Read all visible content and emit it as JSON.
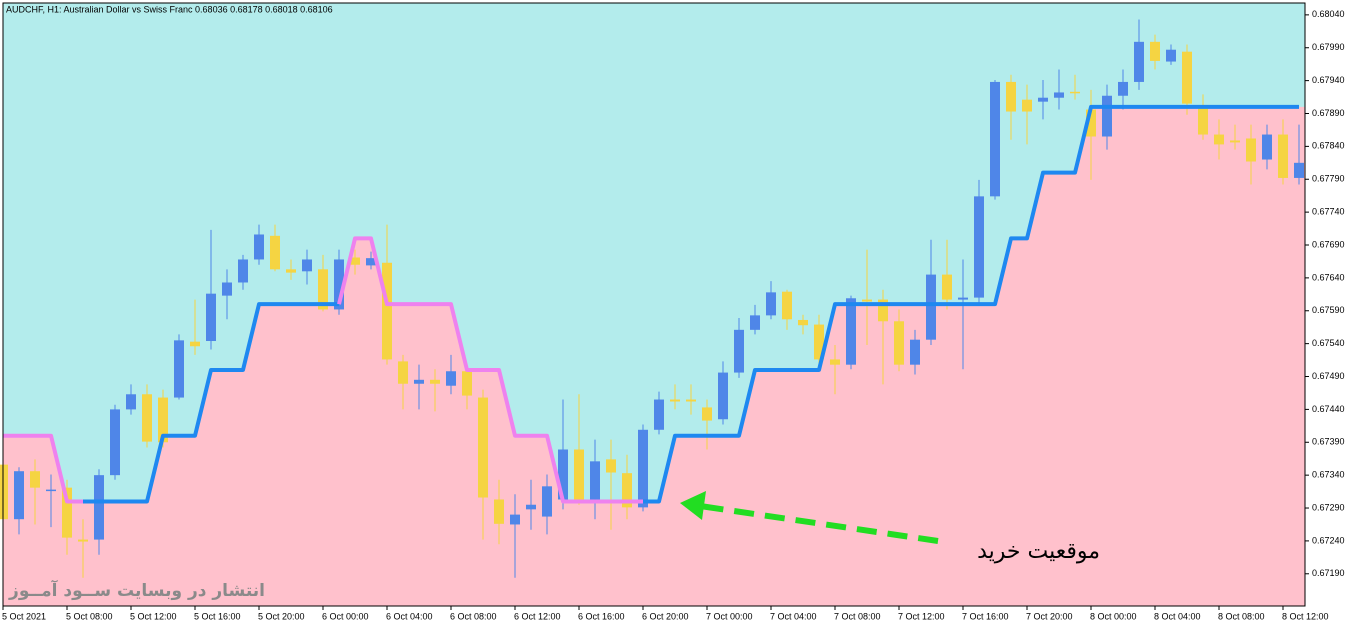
{
  "chart_data": {
    "type": "candlestick",
    "title": "AUDCHF, H1:  Australian Dollar vs Swiss Franc  0.68036 0.68178 0.68018 0.68106",
    "annotations": [
      "موقعیت خرید",
      "انتشار در وبسایت  ســود آمــوز"
    ],
    "categories": [
      "5 Oct 2021",
      null,
      null,
      null,
      "5 Oct 08:00",
      null,
      null,
      null,
      "5 Oct 12:00",
      null,
      null,
      null,
      "5 Oct 16:00",
      null,
      null,
      null,
      "5 Oct 20:00",
      null,
      null,
      null,
      "6 Oct 00:00",
      null,
      null,
      null,
      "6 Oct 04:00",
      null,
      null,
      null,
      "6 Oct 08:00",
      null,
      null,
      null,
      "6 Oct 12:00",
      null,
      null,
      null,
      "6 Oct 16:00",
      null,
      null,
      null,
      "6 Oct 20:00",
      null,
      null,
      null,
      "7 Oct 00:00",
      null,
      null,
      null,
      "7 Oct 04:00",
      null,
      null,
      null,
      "7 Oct 08:00",
      null,
      null,
      null,
      "7 Oct 12:00",
      null,
      null,
      null,
      "7 Oct 16:00",
      null,
      null,
      null,
      "7 Oct 20:00",
      null,
      null,
      null,
      "8 Oct 00:00",
      null,
      null,
      null,
      "8 Oct 04:00",
      null,
      null,
      null,
      "8 Oct 08:00",
      null,
      null,
      null,
      "8 Oct 12:00",
      null
    ],
    "open": [
      0.67356,
      0.67273,
      0.67346,
      0.67318,
      0.67321,
      0.67242,
      0.67242,
      0.6734,
      0.6744,
      0.67463,
      0.67458,
      0.67458,
      0.67543,
      0.67544,
      0.67613,
      0.67633,
      0.67668,
      0.67704,
      0.67653,
      0.6765,
      0.67653,
      0.67592,
      0.67671,
      0.67659,
      0.67663,
      0.67513,
      0.67479,
      0.67485,
      0.67476,
      0.67498,
      0.67458,
      0.67303,
      0.67265,
      0.67288,
      0.67277,
      0.67303,
      0.67379,
      0.67303,
      0.67364,
      0.67343,
      0.67291,
      0.67409,
      0.67455,
      0.67455,
      0.67443,
      0.67425,
      0.67496,
      0.67561,
      0.67583,
      0.67619,
      0.67576,
      0.67569,
      0.67516,
      0.67508,
      0.67607,
      0.67607,
      0.67574,
      0.67508,
      0.67546,
      0.67645,
      0.67607,
      0.6761,
      0.67764,
      0.67938,
      0.67911,
      0.67908,
      0.67914,
      0.67923,
      0.67896,
      0.67855,
      0.67917,
      0.67938,
      0.67999,
      0.67969,
      0.67984,
      0.67899,
      0.67858,
      0.67849,
      0.67852,
      0.6782,
      0.67858,
      0.67792
    ],
    "high": [
      0.67364,
      0.67352,
      0.67364,
      0.67341,
      0.67333,
      0.67273,
      0.67349,
      0.67447,
      0.67478,
      0.67478,
      0.6747,
      0.67554,
      0.67607,
      0.67713,
      0.67653,
      0.67675,
      0.67721,
      0.67721,
      0.67668,
      0.67683,
      0.67675,
      0.67683,
      0.67683,
      0.6768,
      0.67721,
      0.67523,
      0.67508,
      0.67501,
      0.67523,
      0.67508,
      0.6747,
      0.67333,
      0.67311,
      0.67333,
      0.67341,
      0.67455,
      0.67463,
      0.67394,
      0.67394,
      0.67371,
      0.67417,
      0.67467,
      0.67478,
      0.67478,
      0.67455,
      0.67513,
      0.67579,
      0.67599,
      0.67635,
      0.67622,
      0.67584,
      0.67584,
      0.67538,
      0.67613,
      0.67683,
      0.67622,
      0.67592,
      0.67561,
      0.67698,
      0.67698,
      0.67668,
      0.67789,
      0.67941,
      0.67949,
      0.67934,
      0.67941,
      0.67957,
      0.67949,
      0.67926,
      0.67934,
      0.67957,
      0.68033,
      0.6801,
      0.67995,
      0.67995,
      0.67919,
      0.67881,
      0.67873,
      0.67873,
      0.67873,
      0.67881,
      0.67873
    ],
    "low": [
      0.67265,
      0.6725,
      0.67265,
      0.67261,
      0.67219,
      0.67184,
      0.67219,
      0.67333,
      0.67432,
      0.67382,
      0.67382,
      0.67455,
      0.67523,
      0.67531,
      0.67577,
      0.67622,
      0.6766,
      0.6765,
      0.67637,
      0.6763,
      0.67589,
      0.67584,
      0.67645,
      0.67653,
      0.67508,
      0.6744,
      0.6744,
      0.67437,
      0.67463,
      0.6744,
      0.67242,
      0.67235,
      0.67184,
      0.67257,
      0.6725,
      0.67288,
      0.67295,
      0.67273,
      0.67257,
      0.67273,
      0.67285,
      0.67402,
      0.6744,
      0.67432,
      0.67379,
      0.67417,
      0.67488,
      0.67554,
      0.67577,
      0.67561,
      0.67554,
      0.67508,
      0.67463,
      0.67501,
      0.67538,
      0.67478,
      0.67498,
      0.67493,
      0.67538,
      0.67592,
      0.67501,
      0.67599,
      0.67759,
      0.6785,
      0.67843,
      0.67881,
      0.67896,
      0.67911,
      0.67789,
      0.67835,
      0.67896,
      0.67926,
      0.67957,
      0.67964,
      0.67888,
      0.6785,
      0.6782,
      0.67835,
      0.67782,
      0.67805,
      0.67782,
      0.67782
    ],
    "close": [
      0.67273,
      0.67346,
      0.67321,
      0.67318,
      0.67245,
      0.67239,
      0.6734,
      0.6744,
      0.67463,
      0.67391,
      0.6739,
      0.67545,
      0.67536,
      0.67616,
      0.67633,
      0.67668,
      0.67706,
      0.67653,
      0.67648,
      0.67668,
      0.67592,
      0.67668,
      0.6766,
      0.6767,
      0.67516,
      0.67479,
      0.67485,
      0.67479,
      0.67498,
      0.67461,
      0.67306,
      0.67266,
      0.6728,
      0.67295,
      0.67323,
      0.67379,
      0.67303,
      0.67361,
      0.67344,
      0.67291,
      0.67409,
      0.67455,
      0.67452,
      0.67452,
      0.67423,
      0.67496,
      0.67561,
      0.67583,
      0.67618,
      0.67577,
      0.67568,
      0.67516,
      0.67508,
      0.67609,
      0.67604,
      0.67574,
      0.67508,
      0.67546,
      0.67645,
      0.67607,
      0.6761,
      0.67764,
      0.67938,
      0.67893,
      0.67893,
      0.67914,
      0.67922,
      0.67922,
      0.67855,
      0.67917,
      0.67938,
      0.67999,
      0.6797,
      0.67987,
      0.67905,
      0.67858,
      0.67843,
      0.67846,
      0.67817,
      0.67858,
      0.67792,
      0.67815
    ],
    "up_color": "#4f86e8",
    "down_color": "#f5d442",
    "overlays": [
      {
        "color": "#1e88f0",
        "values": [
          null,
          null,
          null,
          null,
          null,
          0.673,
          0.673,
          0.673,
          0.673,
          0.673,
          0.674,
          0.674,
          0.674,
          0.675,
          0.675,
          0.675,
          0.676,
          0.676,
          0.676,
          0.676,
          0.676,
          0.676,
          null,
          null,
          null,
          null,
          null,
          null,
          null,
          null,
          null,
          null,
          null,
          null,
          null,
          null,
          null,
          null,
          null,
          null,
          0.673,
          0.673,
          0.674,
          0.674,
          0.674,
          0.674,
          0.674,
          0.675,
          0.675,
          0.675,
          0.675,
          0.675,
          0.676,
          0.676,
          0.676,
          0.676,
          0.676,
          0.676,
          0.676,
          0.676,
          0.676,
          0.676,
          0.676,
          0.677,
          0.677,
          0.678,
          0.678,
          0.678,
          0.679,
          0.679,
          0.679,
          0.679,
          0.679,
          0.679,
          0.679,
          0.679,
          0.679,
          0.679,
          0.679,
          0.679,
          0.679,
          0.679
        ]
      },
      {
        "color": "#ee82ee",
        "values": [
          0.674,
          0.674,
          0.674,
          0.674,
          0.673,
          0.673,
          null,
          null,
          null,
          null,
          null,
          null,
          null,
          null,
          null,
          null,
          null,
          null,
          null,
          null,
          null,
          0.676,
          0.677,
          0.677,
          0.676,
          0.676,
          0.676,
          0.676,
          0.676,
          0.675,
          0.675,
          0.675,
          0.674,
          0.674,
          0.674,
          0.673,
          0.673,
          0.673,
          0.673,
          0.673,
          0.673,
          null,
          null,
          null,
          null,
          null,
          null,
          null,
          null,
          null,
          null,
          null,
          null,
          null,
          null,
          null,
          null,
          null,
          null,
          null,
          null,
          null,
          null,
          null,
          null,
          null,
          null,
          null,
          null,
          null,
          null,
          null,
          null,
          null,
          null,
          null,
          null,
          null,
          null,
          null,
          null,
          null
        ]
      }
    ],
    "above_color": "#b3ecec",
    "below_color": "#ffc1cc",
    "ylim": [
      0.67141,
      0.68055
    ],
    "yticks": [
      {
        "value": 0.6804,
        "label": "0.68040"
      },
      {
        "value": 0.6799,
        "label": "0.67990"
      },
      {
        "value": 0.6794,
        "label": "0.67940"
      },
      {
        "value": 0.6789,
        "label": "0.67890"
      },
      {
        "value": 0.6784,
        "label": "0.67840"
      },
      {
        "value": 0.6779,
        "label": "0.67790"
      },
      {
        "value": 0.6774,
        "label": "0.67740"
      },
      {
        "value": 0.6769,
        "label": "0.67690"
      },
      {
        "value": 0.6764,
        "label": "0.67640"
      },
      {
        "value": 0.6759,
        "label": "0.67590"
      },
      {
        "value": 0.6754,
        "label": "0.67540"
      },
      {
        "value": 0.6749,
        "label": "0.67490"
      },
      {
        "value": 0.6744,
        "label": "0.67440"
      },
      {
        "value": 0.6739,
        "label": "0.67390"
      },
      {
        "value": 0.6734,
        "label": "0.67340"
      },
      {
        "value": 0.6729,
        "label": "0.67290"
      },
      {
        "value": 0.6724,
        "label": "0.67240"
      },
      {
        "value": 0.6719,
        "label": "0.67190"
      }
    ]
  }
}
